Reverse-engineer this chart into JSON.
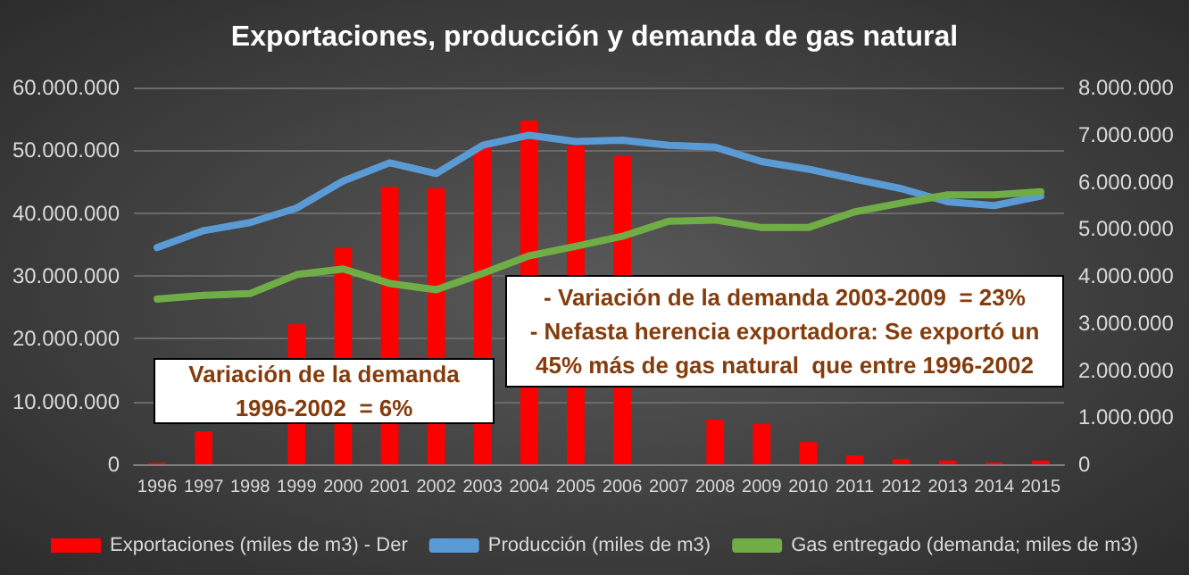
{
  "chart_data": {
    "type": "bar",
    "title": "Exportaciones, producción y demanda de gas natural",
    "categories": [
      "1996",
      "1997",
      "1998",
      "1999",
      "2000",
      "2001",
      "2002",
      "2003",
      "2004",
      "2005",
      "2006",
      "2007",
      "2008",
      "2009",
      "2010",
      "2011",
      "2012",
      "2013",
      "2014",
      "2015"
    ],
    "series": [
      {
        "name": "Exportaciones (miles de m3) - Der",
        "axis": "y2",
        "color": "#ff0000",
        "values": [
          30000,
          700000,
          null,
          2970000,
          4590000,
          5890000,
          5860000,
          6730000,
          7300000,
          6770000,
          6540000,
          null,
          950000,
          860000,
          470000,
          190000,
          110000,
          80000,
          40000,
          80000
        ]
      },
      {
        "name": "Producción (miles de m3)",
        "type": "line",
        "color": "#5b9bd5",
        "values": [
          34500000,
          37200000,
          38500000,
          40800000,
          45100000,
          48000000,
          46300000,
          50800000,
          52400000,
          51400000,
          51600000,
          50800000,
          50500000,
          48200000,
          47000000,
          45400000,
          43900000,
          41800000,
          41200000,
          42700000
        ]
      },
      {
        "name": "Gas entregado (demanda; miles de m3)",
        "type": "line",
        "color": "#70ad47",
        "values": [
          26300000,
          26900000,
          27200000,
          30200000,
          31100000,
          28800000,
          27800000,
          30400000,
          33200000,
          34700000,
          36300000,
          38700000,
          38900000,
          37700000,
          37700000,
          40200000,
          41600000,
          42900000,
          42900000,
          43400000
        ]
      }
    ],
    "ylim": [
      0,
      60000000
    ],
    "yticks": [
      {
        "value": 0,
        "label": "0"
      },
      {
        "value": 10000000,
        "label": "10.000.000"
      },
      {
        "value": 20000000,
        "label": "20.000.000"
      },
      {
        "value": 30000000,
        "label": "30.000.000"
      },
      {
        "value": 40000000,
        "label": "40.000.000"
      },
      {
        "value": 50000000,
        "label": "50.000.000"
      },
      {
        "value": 60000000,
        "label": "60.000.000"
      }
    ],
    "y2lim": [
      0,
      8000000
    ],
    "y2ticks": [
      {
        "value": 0,
        "label": "0"
      },
      {
        "value": 1000000,
        "label": "1.000.000"
      },
      {
        "value": 2000000,
        "label": "2.000.000"
      },
      {
        "value": 3000000,
        "label": "3.000.000"
      },
      {
        "value": 4000000,
        "label": "4.000.000"
      },
      {
        "value": 5000000,
        "label": "5.000.000"
      },
      {
        "value": 6000000,
        "label": "6.000.000"
      },
      {
        "value": 7000000,
        "label": "7.000.000"
      },
      {
        "value": 8000000,
        "label": "8.000.000"
      }
    ],
    "grid": "y",
    "legend": "bottom",
    "marker": "none",
    "line_style": "solid",
    "annotations": [
      "Variación de la demanda\n1996-2002  = 6%",
      "- Variación de la demanda 2003-2009  = 23%\n- Nefasta herencia exportadora: Se exportó un\n45% más de gas natural  que entre 1996-2002"
    ]
  }
}
